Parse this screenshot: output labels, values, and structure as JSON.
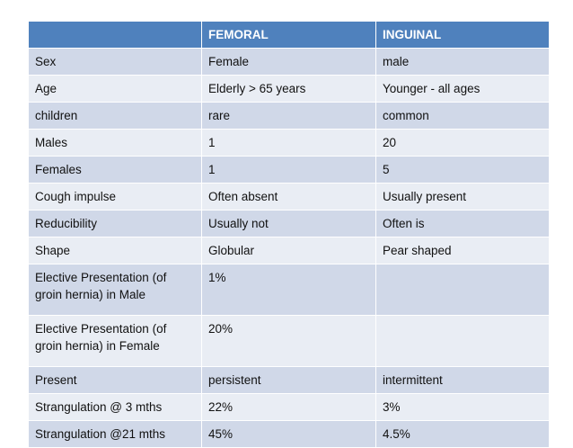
{
  "table": {
    "headers": [
      "",
      "FEMORAL",
      "INGUINAL"
    ],
    "rows": [
      [
        "Sex",
        "Female",
        "male"
      ],
      [
        "Age",
        "Elderly > 65 years",
        "Younger - all ages"
      ],
      [
        "children",
        "rare",
        "common"
      ],
      [
        "Males",
        "1",
        "20"
      ],
      [
        "Females",
        "1",
        "5"
      ],
      [
        "Cough impulse",
        "Often absent",
        "Usually present"
      ],
      [
        "Reducibility",
        "Usually not",
        "Often is"
      ],
      [
        "Shape",
        "Globular",
        "Pear shaped"
      ],
      [
        "Elective Presentation (of groin hernia) in Male",
        "1%",
        ""
      ],
      [
        "Elective Presentation (of groin hernia) in Female",
        "20%",
        ""
      ],
      [
        "Present",
        "persistent",
        "intermittent"
      ],
      [
        "Strangulation @ 3 mths",
        "22%",
        "3%"
      ],
      [
        "Strangulation @21 mths",
        "45%",
        "4.5%"
      ]
    ]
  },
  "colors": {
    "header_bg": "#4f81bd",
    "row_odd_bg": "#d0d8e8",
    "row_even_bg": "#e9edf4"
  }
}
